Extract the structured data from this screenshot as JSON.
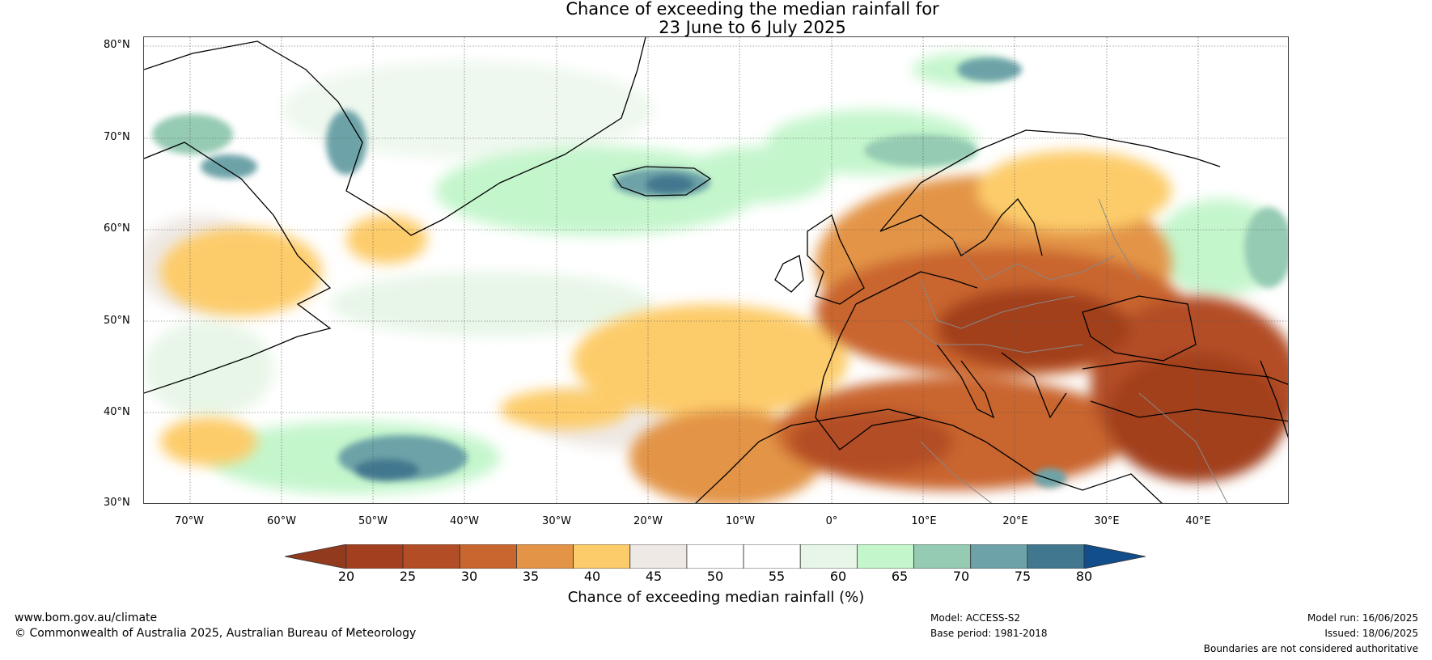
{
  "title": {
    "line1": "Chance of exceeding the median rainfall for",
    "line2": "23 June to 6 July 2025"
  },
  "map": {
    "lat_ticks": [
      "80°N",
      "70°N",
      "60°N",
      "50°N",
      "40°N",
      "30°N"
    ],
    "lon_ticks": [
      "70°W",
      "60°W",
      "50°W",
      "40°W",
      "30°W",
      "20°W",
      "10°W",
      "0°",
      "10°E",
      "20°E",
      "30°E",
      "40°E"
    ],
    "lon_range": [
      -75,
      50
    ],
    "lat_range": [
      30,
      81
    ],
    "tick_lons": [
      -70,
      -60,
      -50,
      -40,
      -30,
      -20,
      -10,
      0,
      10,
      20,
      30,
      40
    ],
    "tick_lats": [
      80,
      70,
      60,
      50,
      40,
      30
    ]
  },
  "colorbar": {
    "label": "Chance of exceeding median rainfall (%)",
    "ticks": [
      "20",
      "25",
      "30",
      "35",
      "40",
      "45",
      "50",
      "55",
      "60",
      "65",
      "70",
      "75",
      "80"
    ],
    "colors": [
      "#a33f1e",
      "#b34d26",
      "#c9652e",
      "#e39447",
      "#fdcc6a",
      "#efe9e5",
      "#ffffff",
      "#ffffff",
      "#e8f6e8",
      "#c4f6cc",
      "#95cbb3",
      "#6da3a8",
      "#42788f"
    ],
    "under_color": "#913a1e",
    "over_color": "#124e8c"
  },
  "footer": {
    "website": "www.bom.gov.au/climate",
    "copyright": "© Commonwealth of Australia 2025, Australian Bureau of Meteorology",
    "model": "Model: ACCESS-S2",
    "base_period": "Base period: 1981-2018",
    "model_run": "Model run: 16/06/2025",
    "issued": "Issued: 18/06/2025",
    "disclaimer": "Boundaries are not considered authoritative"
  }
}
